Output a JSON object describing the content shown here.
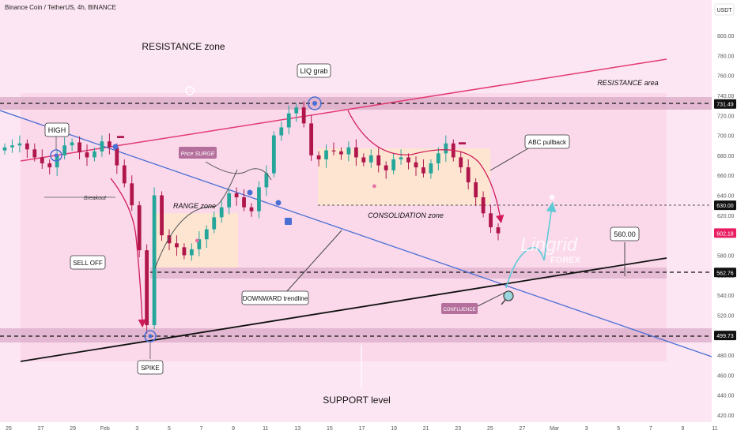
{
  "header": {
    "title": "Binance Coin / TetherUS, 4h, BINANCE",
    "currency": "USDT"
  },
  "watermark": {
    "brand": "Lingrid",
    "sub": "FOREX"
  },
  "annotations": {
    "resistance_zone": "RESISTANCE zone",
    "resistance_area": "RESISTANCE area",
    "support_level": "SUPPORT level",
    "liq_grab": "LIQ grab",
    "high": "HIGH",
    "breakout": "Breakout",
    "price_surge": "Price SURGE",
    "range_zone": "RANGE zone",
    "consolidation_zone": "CONSOLIDATION zone",
    "abc_pullback": "ABC pullback",
    "sell_off": "SELL OFF",
    "downward_trendline": "DOWNWARD trendline",
    "confluence": "CONFLUENCE",
    "spike": "SPIKE",
    "target": "560.00"
  },
  "chart_data": {
    "type": "candlestick",
    "title": "Binance Coin / TetherUS, 4h, BINANCE",
    "y_unit": "USDT",
    "ylim": [
      415,
      820
    ],
    "y_ticks": [
      420,
      440,
      460,
      480,
      500,
      520,
      540,
      560,
      580,
      600,
      620,
      640,
      660,
      680,
      700,
      720,
      740,
      760,
      780,
      800
    ],
    "x_ticks": [
      "25",
      "27",
      "29",
      "Feb",
      "3",
      "5",
      "7",
      "9",
      "11",
      "13",
      "15",
      "17",
      "19",
      "21",
      "23",
      "25",
      "27",
      "Mar",
      "3",
      "5",
      "7",
      "9",
      "11"
    ],
    "price_labels": [
      {
        "value": 731.49,
        "text": "731.49",
        "color": "#111111"
      },
      {
        "value": 630.0,
        "text": "630.00",
        "color": "#111111"
      },
      {
        "value": 602.18,
        "text": "602.18",
        "color": "#e91e63"
      },
      {
        "value": 562.76,
        "text": "562.76",
        "color": "#111111"
      },
      {
        "value": 499.73,
        "text": "499.73",
        "color": "#111111"
      }
    ],
    "horizontal_levels": [
      731.49,
      630.0,
      562.76,
      499.73
    ],
    "close_series": [
      688,
      690,
      692,
      686,
      678,
      672,
      668,
      680,
      690,
      693,
      683,
      678,
      684,
      694,
      688,
      670,
      652,
      630,
      585,
      510,
      640,
      600,
      592,
      588,
      580,
      586,
      596,
      606,
      618,
      628,
      642,
      638,
      628,
      624,
      648,
      662,
      700,
      708,
      722,
      728,
      712,
      680,
      676,
      685,
      684,
      681,
      688,
      678,
      673,
      680,
      670,
      665,
      676,
      678,
      673,
      668,
      662,
      672,
      682,
      692,
      678,
      668,
      653,
      638,
      622,
      608,
      602
    ],
    "colors": {
      "up": "#26a69a",
      "down": "#b0164a",
      "trendline": "#4a6fd4",
      "support_line": "#111111",
      "resistance_line": "#e23a72",
      "zone": "#e2b8d0",
      "box": "#fde5cf"
    }
  }
}
